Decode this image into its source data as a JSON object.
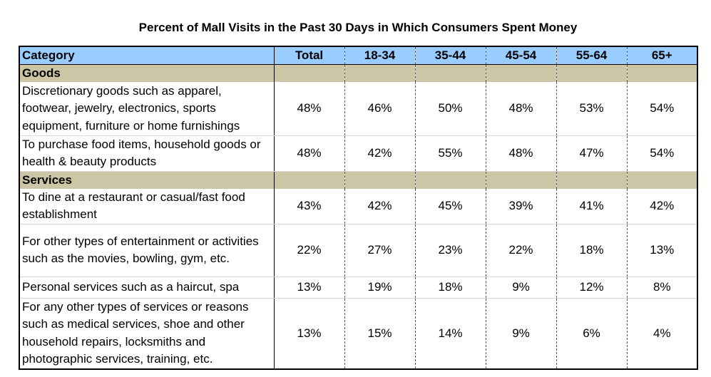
{
  "chart_data": {
    "type": "table",
    "title": "Percent of Mall Visits in the Past 30 Days in Which Consumers Spent Money",
    "columns": [
      "Category",
      "Total",
      "18-34",
      "35-44",
      "45-54",
      "55-64",
      "65+"
    ],
    "sections": [
      {
        "name": "Goods",
        "rows": [
          {
            "label": "Discretionary goods such as apparel, footwear, jewelry, electronics, sports equipment, furniture or home furnishings",
            "values": [
              "48%",
              "46%",
              "50%",
              "48%",
              "53%",
              "54%"
            ]
          },
          {
            "label": "To purchase food items, household goods or health & beauty products",
            "values": [
              "48%",
              "42%",
              "55%",
              "48%",
              "47%",
              "54%"
            ]
          }
        ]
      },
      {
        "name": "Services",
        "rows": [
          {
            "label": "To dine at a restaurant or casual/fast food establishment",
            "values": [
              "43%",
              "42%",
              "45%",
              "39%",
              "41%",
              "42%"
            ]
          },
          {
            "label": "For other types of entertainment or activities such as the movies, bowling, gym, etc.",
            "values": [
              "22%",
              "27%",
              "23%",
              "22%",
              "18%",
              "13%"
            ]
          },
          {
            "label": "Personal services such as a haircut, spa",
            "values": [
              "13%",
              "19%",
              "18%",
              "9%",
              "12%",
              "8%"
            ]
          },
          {
            "label": "For any other types of services or reasons such as medical services, shoe and other household repairs, locksmiths and photographic services, training, etc.",
            "values": [
              "13%",
              "15%",
              "14%",
              "9%",
              "6%",
              "4%"
            ]
          }
        ]
      }
    ],
    "colors": {
      "header_bg": "#99ccff",
      "section_bg": "#ccc6a6"
    }
  }
}
